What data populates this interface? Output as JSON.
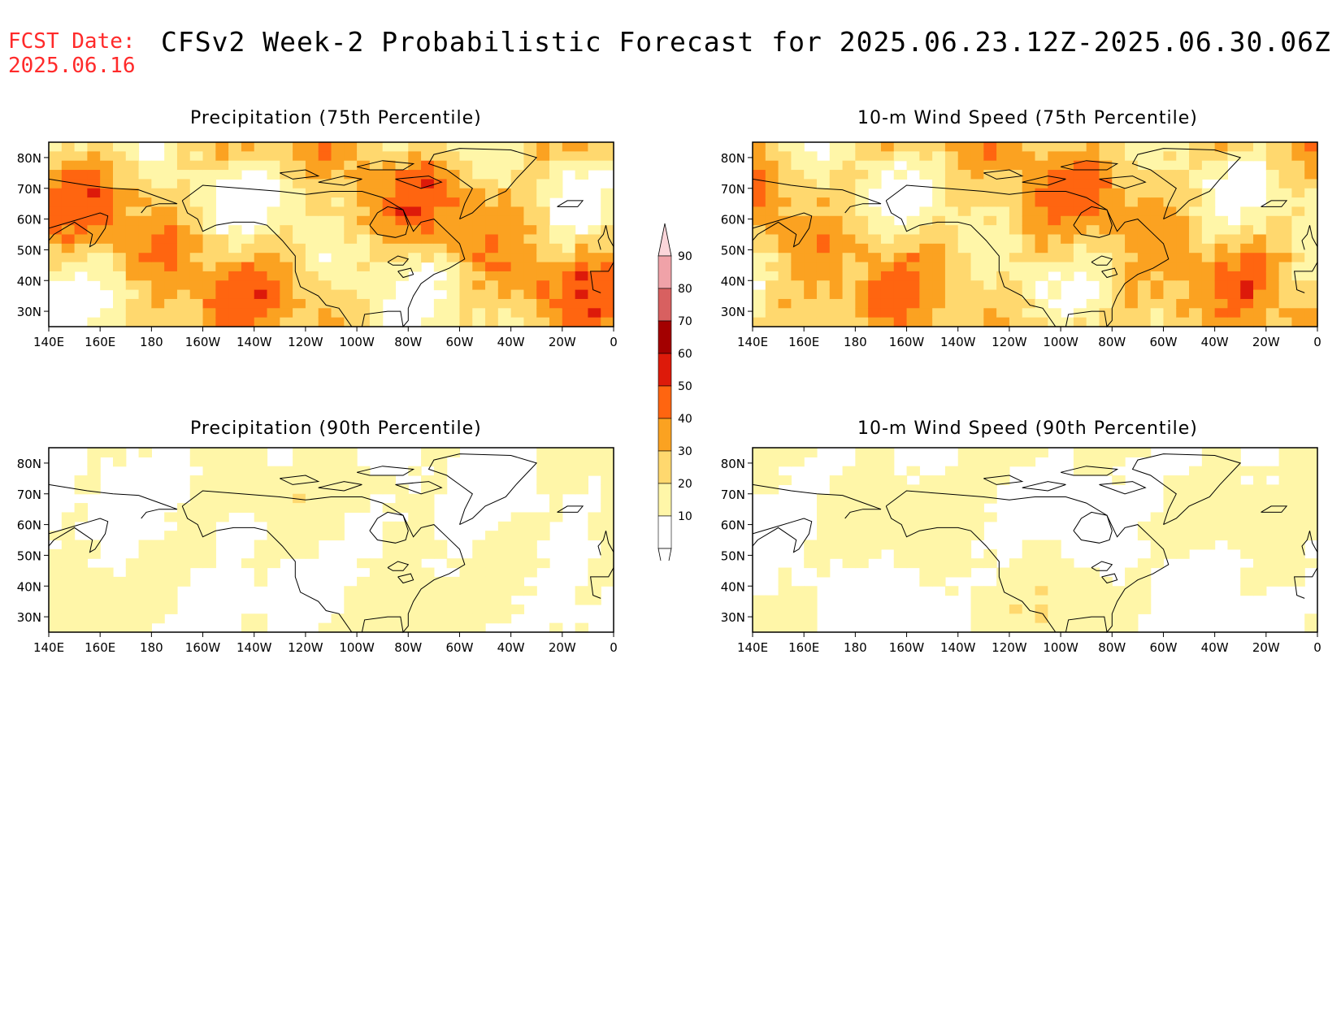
{
  "header": {
    "fcst_label": "FCST Date:",
    "fcst_date": "2025.06.16",
    "title": "CFSv2 Week-2 Probabilistic Forecast for 2025.06.23.12Z-2025.06.30.06Z"
  },
  "colors": {
    "accent_red": "#ff2a2a",
    "levels": [
      "#ffffff",
      "#fff6a8",
      "#ffd86e",
      "#fba221",
      "#ff6510",
      "#dd1a0a",
      "#a30000",
      "#d86060",
      "#f0a2a8",
      "#fbd6da"
    ]
  },
  "colorbar": {
    "labels": [
      "10",
      "20",
      "30",
      "40",
      "50",
      "60",
      "70",
      "80",
      "90"
    ]
  },
  "axes": {
    "lon_labels": [
      "140E",
      "160E",
      "180",
      "160W",
      "140W",
      "120W",
      "100W",
      "80W",
      "60W",
      "40W",
      "20W",
      "0"
    ],
    "lat_labels": [
      "80N",
      "70N",
      "60N",
      "50N",
      "40N",
      "30N"
    ]
  },
  "panels": [
    {
      "id": "precip75",
      "title": "Precipitation (75th Percentile)",
      "intensity": 3
    },
    {
      "id": "wind75",
      "title": "10-m Wind Speed (75th Percentile)",
      "intensity": 3
    },
    {
      "id": "precip90",
      "title": "Precipitation (90th Percentile)",
      "intensity": 1
    },
    {
      "id": "wind90",
      "title": "10-m Wind Speed (90th Percentile)",
      "intensity": 1
    }
  ]
}
